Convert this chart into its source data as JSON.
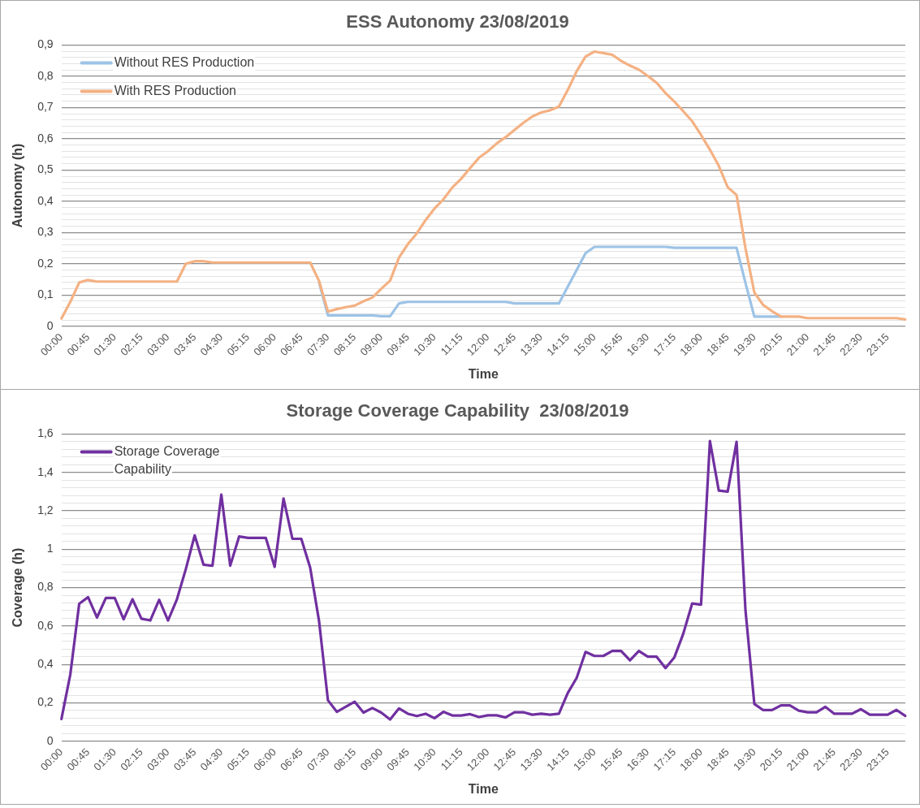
{
  "chart_data": [
    {
      "type": "line",
      "title": "ESS Autonomy 23/08/2019",
      "xlabel": "Time",
      "ylabel": "Autonomy (h)",
      "legend": "top left",
      "grid": "y",
      "categories": [
        "00:00",
        null,
        null,
        "00:45",
        null,
        null,
        "01:30",
        null,
        null,
        "02:15",
        null,
        null,
        "03:00",
        null,
        null,
        "03:45",
        null,
        null,
        "04:30",
        null,
        null,
        "05:15",
        null,
        null,
        "06:00",
        null,
        null,
        "06:45",
        null,
        null,
        "07:30",
        null,
        null,
        "08:15",
        null,
        null,
        "09:00",
        null,
        null,
        "09:45",
        null,
        null,
        "10:30",
        null,
        null,
        "11:15",
        null,
        null,
        "12:00",
        null,
        null,
        "12:45",
        null,
        null,
        "13:30",
        null,
        null,
        "14:15",
        null,
        null,
        "15:00",
        null,
        null,
        "15:45",
        null,
        null,
        "16:30",
        null,
        null,
        "17:15",
        null,
        null,
        "18:00",
        null,
        null,
        "18:45",
        null,
        null,
        "19:30",
        null,
        null,
        "20:15",
        null,
        null,
        "21:00",
        null,
        null,
        "21:45",
        null,
        null,
        "22:30",
        null,
        null,
        "23:15",
        null,
        null
      ],
      "ylim": [
        0,
        0.9
      ],
      "yticks": [
        {
          "value": 0,
          "label": "0"
        },
        {
          "value": 0.02,
          "label": null
        },
        {
          "value": 0.04,
          "label": null
        },
        {
          "value": 0.06,
          "label": null
        },
        {
          "value": 0.08,
          "label": null
        },
        {
          "value": 0.1,
          "label": "0,1"
        },
        {
          "value": 0.12,
          "label": null
        },
        {
          "value": 0.14,
          "label": null
        },
        {
          "value": 0.16,
          "label": null
        },
        {
          "value": 0.18,
          "label": null
        },
        {
          "value": 0.2,
          "label": "0,2"
        },
        {
          "value": 0.22,
          "label": null
        },
        {
          "value": 0.24,
          "label": null
        },
        {
          "value": 0.26,
          "label": null
        },
        {
          "value": 0.28,
          "label": null
        },
        {
          "value": 0.3,
          "label": "0,3"
        },
        {
          "value": 0.32,
          "label": null
        },
        {
          "value": 0.34,
          "label": null
        },
        {
          "value": 0.36,
          "label": null
        },
        {
          "value": 0.38,
          "label": null
        },
        {
          "value": 0.4,
          "label": "0,4"
        },
        {
          "value": 0.42,
          "label": null
        },
        {
          "value": 0.44,
          "label": null
        },
        {
          "value": 0.46,
          "label": null
        },
        {
          "value": 0.48,
          "label": null
        },
        {
          "value": 0.5,
          "label": "0,5"
        },
        {
          "value": 0.52,
          "label": null
        },
        {
          "value": 0.54,
          "label": null
        },
        {
          "value": 0.56,
          "label": null
        },
        {
          "value": 0.58,
          "label": null
        },
        {
          "value": 0.6,
          "label": "0,6"
        },
        {
          "value": 0.62,
          "label": null
        },
        {
          "value": 0.64,
          "label": null
        },
        {
          "value": 0.66,
          "label": null
        },
        {
          "value": 0.68,
          "label": null
        },
        {
          "value": 0.7,
          "label": "0,7"
        },
        {
          "value": 0.72,
          "label": null
        },
        {
          "value": 0.74,
          "label": null
        },
        {
          "value": 0.76,
          "label": null
        },
        {
          "value": 0.78,
          "label": null
        },
        {
          "value": 0.8,
          "label": "0,8"
        },
        {
          "value": 0.82,
          "label": null
        },
        {
          "value": 0.84,
          "label": null
        },
        {
          "value": 0.86,
          "label": null
        },
        {
          "value": 0.88,
          "label": null
        },
        {
          "value": 0.9,
          "label": "0,9"
        }
      ],
      "series": [
        {
          "name": "Without RES Production",
          "color": "#9dc3e6",
          "values": [
            null,
            null,
            null,
            null,
            null,
            null,
            null,
            null,
            null,
            null,
            null,
            null,
            null,
            null,
            null,
            null,
            null,
            null,
            null,
            null,
            null,
            null,
            null,
            null,
            null,
            null,
            null,
            null,
            null,
            0.14,
            0.035,
            0.035,
            0.035,
            0.035,
            0.035,
            0.035,
            0.032,
            0.032,
            0.073,
            0.078,
            0.078,
            0.078,
            0.078,
            0.078,
            0.078,
            0.078,
            0.078,
            0.078,
            0.078,
            0.078,
            0.078,
            0.073,
            0.073,
            0.073,
            0.073,
            0.073,
            0.073,
            0.127,
            0.18,
            0.234,
            0.254,
            0.254,
            0.254,
            0.254,
            0.254,
            0.254,
            0.254,
            0.254,
            0.254,
            0.251,
            0.251,
            0.251,
            0.251,
            0.251,
            0.251,
            0.251,
            0.251,
            0.139,
            0.031,
            0.031,
            0.031,
            0.031,
            null,
            null,
            null,
            null,
            null,
            null,
            null,
            null,
            null,
            null,
            null,
            null,
            null,
            null
          ]
        },
        {
          "name": "With RES Production",
          "color": "#f4b183",
          "values": [
            0.025,
            0.078,
            0.14,
            0.148,
            0.143,
            0.143,
            0.143,
            0.143,
            0.143,
            0.143,
            0.143,
            0.143,
            0.143,
            0.143,
            0.2,
            0.208,
            0.208,
            0.204,
            0.204,
            0.204,
            0.204,
            0.204,
            0.204,
            0.204,
            0.204,
            0.204,
            0.204,
            0.204,
            0.204,
            0.145,
            0.047,
            0.055,
            0.061,
            0.066,
            0.08,
            0.092,
            0.12,
            0.146,
            0.22,
            0.263,
            0.297,
            0.34,
            0.377,
            0.406,
            0.444,
            0.472,
            0.506,
            0.539,
            0.56,
            0.585,
            0.605,
            0.628,
            0.651,
            0.671,
            0.684,
            0.691,
            0.703,
            0.756,
            0.816,
            0.863,
            0.879,
            0.874,
            0.869,
            0.849,
            0.834,
            0.821,
            0.801,
            0.779,
            0.746,
            0.719,
            0.688,
            0.656,
            0.612,
            0.565,
            0.513,
            0.445,
            0.42,
            0.25,
            0.108,
            0.068,
            0.048,
            0.031,
            0.031,
            0.031,
            0.026,
            0.026,
            0.026,
            0.026,
            0.026,
            0.026,
            0.026,
            0.026,
            0.026,
            0.026,
            0.026,
            0.022
          ]
        }
      ]
    },
    {
      "type": "line",
      "title": "Storage Coverage Capability  23/08/2019",
      "xlabel": "Time",
      "ylabel": "Coverage (h)",
      "legend": "top left",
      "grid": "y",
      "categories": [
        "00:00",
        null,
        null,
        "00:45",
        null,
        null,
        "01:30",
        null,
        null,
        "02:15",
        null,
        null,
        "03:00",
        null,
        null,
        "03:45",
        null,
        null,
        "04:30",
        null,
        null,
        "05:15",
        null,
        null,
        "06:00",
        null,
        null,
        "06:45",
        null,
        null,
        "07:30",
        null,
        null,
        "08:15",
        null,
        null,
        "09:00",
        null,
        null,
        "09:45",
        null,
        null,
        "10:30",
        null,
        null,
        "11:15",
        null,
        null,
        "12:00",
        null,
        null,
        "12:45",
        null,
        null,
        "13:30",
        null,
        null,
        "14:15",
        null,
        null,
        "15:00",
        null,
        null,
        "15:45",
        null,
        null,
        "16:30",
        null,
        null,
        "17:15",
        null,
        null,
        "18:00",
        null,
        null,
        "18:45",
        null,
        null,
        "19:30",
        null,
        null,
        "20:15",
        null,
        null,
        "21:00",
        null,
        null,
        "21:45",
        null,
        null,
        "22:30",
        null,
        null,
        "23:15",
        null,
        null
      ],
      "ylim": [
        0,
        1.6
      ],
      "yticks": [
        {
          "value": 0,
          "label": "0"
        },
        {
          "value": 0.04,
          "label": null
        },
        {
          "value": 0.08,
          "label": null
        },
        {
          "value": 0.12,
          "label": null
        },
        {
          "value": 0.16,
          "label": null
        },
        {
          "value": 0.2,
          "label": "0,2"
        },
        {
          "value": 0.24,
          "label": null
        },
        {
          "value": 0.28,
          "label": null
        },
        {
          "value": 0.32,
          "label": null
        },
        {
          "value": 0.36,
          "label": null
        },
        {
          "value": 0.4,
          "label": "0,4"
        },
        {
          "value": 0.44,
          "label": null
        },
        {
          "value": 0.48,
          "label": null
        },
        {
          "value": 0.52,
          "label": null
        },
        {
          "value": 0.56,
          "label": null
        },
        {
          "value": 0.6,
          "label": "0,6"
        },
        {
          "value": 0.64,
          "label": null
        },
        {
          "value": 0.68,
          "label": null
        },
        {
          "value": 0.72,
          "label": null
        },
        {
          "value": 0.76,
          "label": null
        },
        {
          "value": 0.8,
          "label": "0,8"
        },
        {
          "value": 0.84,
          "label": null
        },
        {
          "value": 0.88,
          "label": null
        },
        {
          "value": 0.92,
          "label": null
        },
        {
          "value": 0.96,
          "label": null
        },
        {
          "value": 1,
          "label": "1"
        },
        {
          "value": 1.04,
          "label": null
        },
        {
          "value": 1.08,
          "label": null
        },
        {
          "value": 1.12,
          "label": null
        },
        {
          "value": 1.16,
          "label": null
        },
        {
          "value": 1.2,
          "label": "1,2"
        },
        {
          "value": 1.24,
          "label": null
        },
        {
          "value": 1.28,
          "label": null
        },
        {
          "value": 1.32,
          "label": null
        },
        {
          "value": 1.36,
          "label": null
        },
        {
          "value": 1.4,
          "label": "1,4"
        },
        {
          "value": 1.44,
          "label": null
        },
        {
          "value": 1.48,
          "label": null
        },
        {
          "value": 1.52,
          "label": null
        },
        {
          "value": 1.56,
          "label": null
        },
        {
          "value": 1.6,
          "label": "1,6"
        }
      ],
      "series": [
        {
          "name": "Storage Coverage Capability",
          "color": "#7030a0",
          "values": [
            0.116,
            0.348,
            0.716,
            0.75,
            0.644,
            0.746,
            0.746,
            0.635,
            0.739,
            0.638,
            0.629,
            0.736,
            0.629,
            0.739,
            0.896,
            1.072,
            0.919,
            0.914,
            1.284,
            0.914,
            1.066,
            1.059,
            1.059,
            1.059,
            0.908,
            1.264,
            1.054,
            1.054,
            0.904,
            0.626,
            0.213,
            0.153,
            0.179,
            0.206,
            0.149,
            0.173,
            0.149,
            0.113,
            0.171,
            0.143,
            0.131,
            0.143,
            0.12,
            0.153,
            0.134,
            0.134,
            0.141,
            0.126,
            0.135,
            0.135,
            0.124,
            0.151,
            0.151,
            0.138,
            0.143,
            0.138,
            0.143,
            0.251,
            0.33,
            0.465,
            0.444,
            0.444,
            0.47,
            0.47,
            0.421,
            0.47,
            0.44,
            0.44,
            0.381,
            0.437,
            0.56,
            0.717,
            0.711,
            1.563,
            1.305,
            1.3,
            1.559,
            0.683,
            0.194,
            0.162,
            0.162,
            0.187,
            0.187,
            0.159,
            0.151,
            0.151,
            0.179,
            0.143,
            0.143,
            0.143,
            0.167,
            0.138,
            0.138,
            0.138,
            0.163,
            0.132
          ]
        }
      ]
    }
  ]
}
